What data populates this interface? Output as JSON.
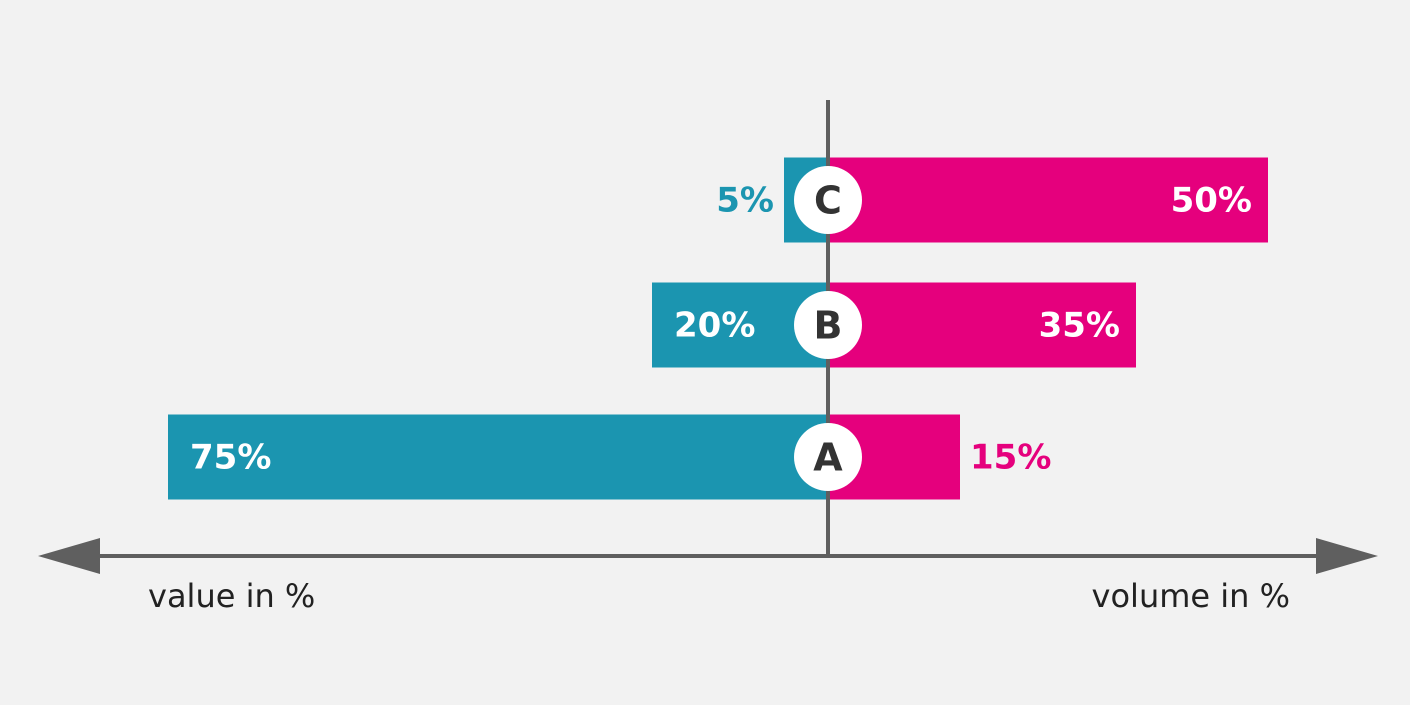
{
  "chart_data": {
    "type": "diverging-bar",
    "categories": [
      "A",
      "B",
      "C"
    ],
    "series": [
      {
        "name": "value in %",
        "color": "#1b95b0",
        "side": "left",
        "values": [
          75,
          20,
          5
        ],
        "value_labels": [
          "75%",
          "20%",
          "5%"
        ]
      },
      {
        "name": "volume in %",
        "color": "#e5007d",
        "side": "right",
        "values": [
          15,
          35,
          50
        ],
        "value_labels": [
          "15%",
          "35%",
          "50%"
        ]
      }
    ]
  }
}
